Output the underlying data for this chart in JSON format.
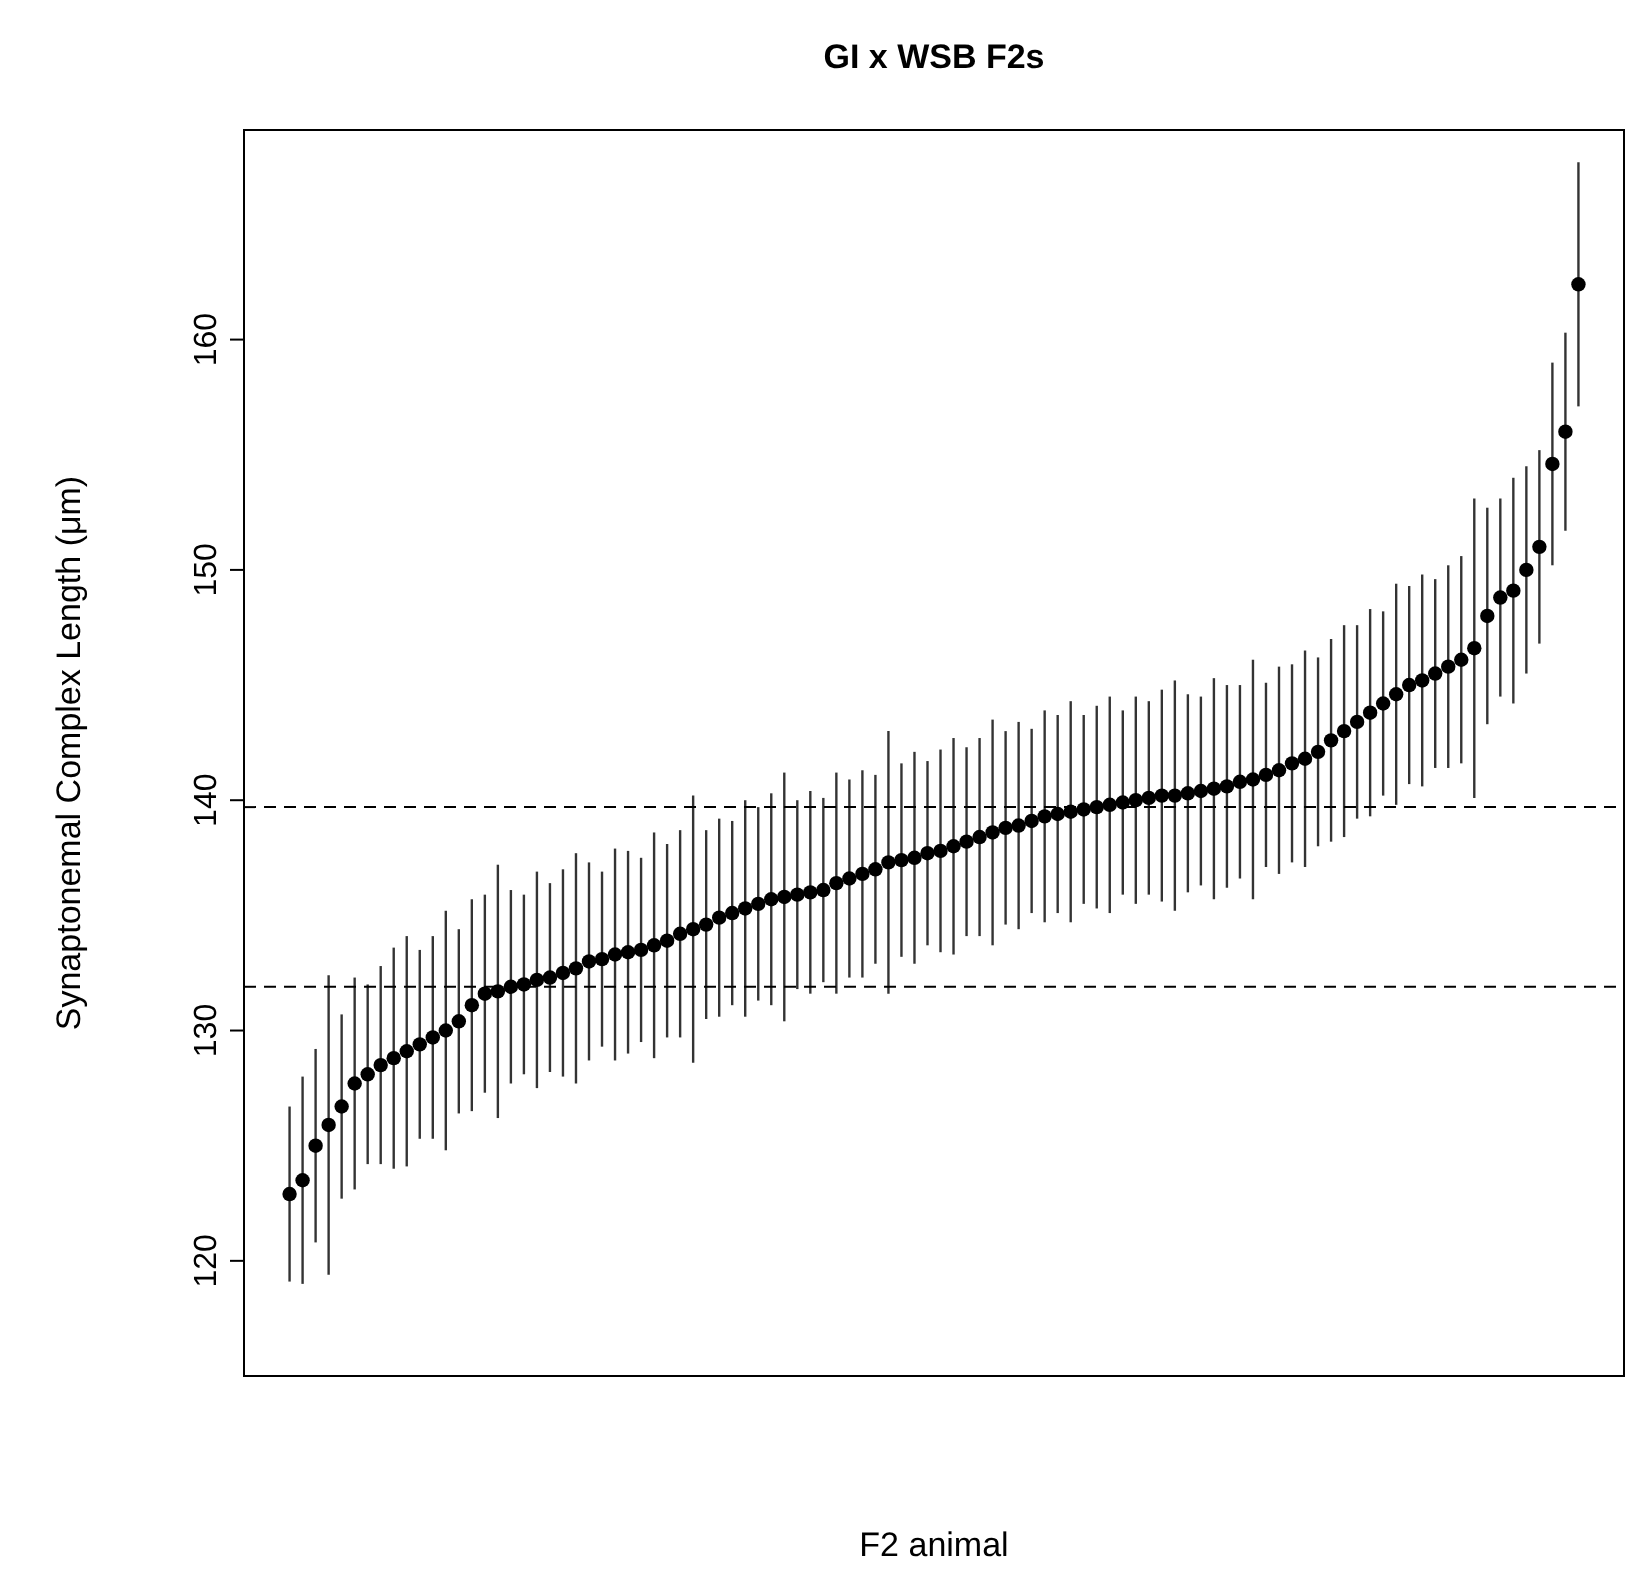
{
  "chart_data": {
    "type": "scatter",
    "title": "GI x WSB F2s",
    "xlabel": "F2 animal",
    "ylabel": "Synaptonemal Complex Length (μm)",
    "categories": [
      null,
      null,
      null,
      null,
      null,
      null,
      null,
      null,
      null,
      null,
      null,
      null,
      null,
      null,
      null,
      null,
      null,
      null,
      null,
      null,
      null,
      null,
      null,
      null,
      null,
      null,
      null,
      null,
      null,
      null,
      null,
      null,
      null,
      null,
      null,
      null,
      null,
      null,
      null,
      null,
      null,
      null,
      null,
      null,
      null,
      null,
      null,
      null,
      null,
      null,
      null,
      null,
      null,
      null,
      null,
      null,
      null,
      null,
      null,
      null,
      null,
      null,
      null,
      null,
      null,
      null,
      null,
      null,
      null,
      null,
      null,
      null,
      null,
      null,
      null,
      null,
      null,
      null,
      null,
      null,
      null,
      null,
      null,
      null,
      null,
      null,
      null,
      null,
      null,
      null,
      null,
      null,
      null,
      null,
      null,
      null,
      null,
      null,
      null,
      null,
      null,
      null,
      null,
      null,
      null,
      null
    ],
    "values": [
      null,
      null,
      null,
      122.9,
      123.5,
      125.0,
      125.9,
      126.7,
      127.7,
      128.1,
      128.5,
      128.8,
      129.1,
      129.4,
      129.7,
      130.0,
      130.4,
      131.1,
      131.6,
      131.7,
      131.9,
      132.0,
      132.2,
      132.3,
      132.5,
      132.7,
      133.0,
      133.1,
      133.3,
      133.4,
      133.5,
      133.7,
      133.9,
      134.2,
      134.4,
      134.6,
      134.9,
      135.1,
      135.3,
      135.5,
      135.7,
      135.8,
      135.9,
      136.0,
      136.1,
      136.4,
      136.6,
      136.8,
      137.0,
      137.3,
      137.4,
      137.5,
      137.7,
      137.8,
      138.0,
      138.2,
      138.4,
      138.6,
      138.8,
      138.9,
      139.1,
      139.3,
      139.4,
      139.5,
      139.6,
      139.7,
      139.8,
      139.9,
      140.0,
      140.1,
      140.2,
      140.2,
      140.3,
      140.4,
      140.5,
      140.6,
      140.8,
      140.9,
      141.1,
      141.3,
      141.6,
      141.8,
      142.1,
      142.6,
      143.0,
      143.4,
      143.8,
      144.2,
      144.6,
      145.0,
      145.2,
      145.5,
      145.8,
      146.1,
      146.6,
      148.0,
      148.8,
      149.1,
      150.0,
      151.0,
      154.6,
      156.0,
      162.4,
      null,
      null,
      null
    ],
    "errors": [
      null,
      null,
      null,
      3.8,
      4.5,
      4.2,
      6.5,
      4.0,
      4.6,
      3.9,
      4.3,
      4.8,
      5.0,
      4.1,
      4.4,
      5.2,
      4.0,
      4.6,
      4.3,
      5.5,
      4.2,
      3.9,
      4.7,
      4.1,
      4.5,
      5.0,
      4.3,
      3.8,
      4.6,
      4.4,
      4.0,
      4.9,
      4.2,
      4.5,
      5.8,
      4.1,
      4.3,
      4.0,
      4.7,
      4.2,
      4.6,
      5.4,
      4.1,
      4.4,
      4.0,
      4.8,
      4.3,
      4.5,
      4.1,
      5.7,
      4.2,
      4.6,
      4.0,
      4.4,
      4.7,
      4.1,
      4.3,
      4.9,
      4.2,
      4.5,
      4.0,
      4.6,
      4.3,
      4.8,
      4.1,
      4.4,
      4.7,
      4.0,
      4.5,
      4.2,
      4.6,
      5.0,
      4.3,
      4.1,
      4.8,
      4.4,
      4.2,
      5.2,
      4.0,
      4.5,
      4.3,
      4.7,
      4.1,
      4.4,
      4.6,
      4.2,
      4.5,
      4.0,
      4.8,
      4.3,
      4.6,
      4.1,
      4.4,
      4.5,
      6.5,
      4.7,
      4.3,
      4.9,
      4.5,
      4.2,
      4.4,
      4.3,
      5.3,
      null,
      null,
      null
    ],
    "color": "#000000",
    "marker": "circle",
    "ylim": [
      115,
      169.1
    ],
    "yticks": [
      120,
      130,
      140,
      150,
      160
    ],
    "ref_lines": [
      {
        "axis": "y",
        "value": 139.7,
        "line_style": "dashed"
      },
      {
        "axis": "y",
        "value": 131.9,
        "line_style": "dashed"
      }
    ]
  }
}
